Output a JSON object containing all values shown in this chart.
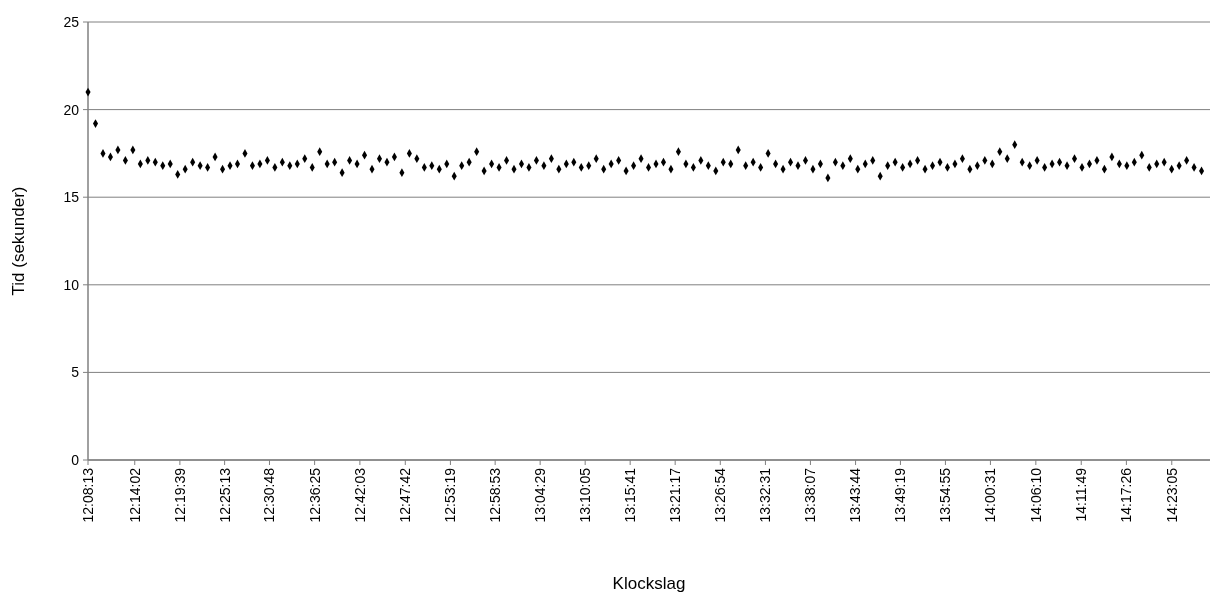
{
  "chart_data": {
    "type": "scatter",
    "xlabel": "Klockslag",
    "ylabel": "Tid (sekunder)",
    "marker": "diamond",
    "grid": "y",
    "xlim": [
      12.13694,
      14.464
    ],
    "xticks": [
      {
        "value": 12.13694,
        "label": "12:08:13"
      },
      {
        "value": 12.23389,
        "label": "12:14:02"
      },
      {
        "value": 12.3275,
        "label": "12:19:39"
      },
      {
        "value": 12.42028,
        "label": "12:25:13"
      },
      {
        "value": 12.51333,
        "label": "12:30:48"
      },
      {
        "value": 12.60694,
        "label": "12:36:25"
      },
      {
        "value": 12.70083,
        "label": "12:42:03"
      },
      {
        "value": 12.795,
        "label": "12:47:42"
      },
      {
        "value": 12.88861,
        "label": "12:53:19"
      },
      {
        "value": 12.98139,
        "label": "12:58:53"
      },
      {
        "value": 13.07472,
        "label": "13:04:29"
      },
      {
        "value": 13.16806,
        "label": "13:10:05"
      },
      {
        "value": 13.26139,
        "label": "13:15:41"
      },
      {
        "value": 13.35472,
        "label": "13:21:17"
      },
      {
        "value": 13.44833,
        "label": "13:26:54"
      },
      {
        "value": 13.54194,
        "label": "13:32:31"
      },
      {
        "value": 13.63528,
        "label": "13:38:07"
      },
      {
        "value": 13.72889,
        "label": "13:43:44"
      },
      {
        "value": 13.82194,
        "label": "13:49:19"
      },
      {
        "value": 13.91528,
        "label": "13:54:55"
      },
      {
        "value": 14.00861,
        "label": "14:00:31"
      },
      {
        "value": 14.10278,
        "label": "14:06:10"
      },
      {
        "value": 14.19694,
        "label": "14:11:49"
      },
      {
        "value": 14.29056,
        "label": "14:17:26"
      },
      {
        "value": 14.38472,
        "label": "14:23:05"
      }
    ],
    "ylim": [
      0,
      25
    ],
    "yticks": [
      0,
      5,
      10,
      15,
      20,
      25
    ],
    "x": [
      12.137,
      12.1525,
      12.168,
      12.1835,
      12.199,
      12.2145,
      12.23,
      12.2455,
      12.261,
      12.2765,
      12.292,
      12.3075,
      12.323,
      12.3385,
      12.354,
      12.3695,
      12.385,
      12.4005,
      12.416,
      12.4315,
      12.447,
      12.4625,
      12.478,
      12.4935,
      12.509,
      12.5245,
      12.54,
      12.5555,
      12.571,
      12.5865,
      12.602,
      12.6175,
      12.633,
      12.6485,
      12.664,
      12.6795,
      12.695,
      12.7105,
      12.726,
      12.7415,
      12.757,
      12.7725,
      12.788,
      12.8035,
      12.819,
      12.8345,
      12.85,
      12.8655,
      12.881,
      12.8965,
      12.912,
      12.9275,
      12.943,
      12.9585,
      12.974,
      12.9895,
      13.005,
      13.0205,
      13.036,
      13.0515,
      13.067,
      13.0825,
      13.098,
      13.1135,
      13.129,
      13.1445,
      13.16,
      13.1755,
      13.191,
      13.2065,
      13.222,
      13.2375,
      13.253,
      13.2685,
      13.284,
      13.2995,
      13.315,
      13.3305,
      13.346,
      13.3615,
      13.377,
      13.3925,
      13.408,
      13.4235,
      13.439,
      13.4545,
      13.47,
      13.4855,
      13.501,
      13.5165,
      13.532,
      13.5475,
      13.563,
      13.5785,
      13.594,
      13.6095,
      13.625,
      13.6405,
      13.656,
      13.6715,
      13.687,
      13.7025,
      13.718,
      13.7335,
      13.749,
      13.7645,
      13.78,
      13.7955,
      13.811,
      13.8265,
      13.842,
      13.8575,
      13.873,
      13.8885,
      13.904,
      13.9195,
      13.935,
      13.9505,
      13.966,
      13.9815,
      13.997,
      14.0125,
      14.028,
      14.0435,
      14.059,
      14.0745,
      14.09,
      14.1055,
      14.121,
      14.1365,
      14.152,
      14.1675,
      14.183,
      14.1985,
      14.214,
      14.2295,
      14.245,
      14.2605,
      14.276,
      14.2915,
      14.307,
      14.3225,
      14.338,
      14.3535,
      14.369,
      14.3845,
      14.4,
      14.4155,
      14.431,
      14.4465
    ],
    "series": [
      {
        "color": "#000000",
        "values": [
          21.0,
          19.2,
          17.5,
          17.3,
          17.7,
          17.1,
          17.7,
          16.9,
          17.1,
          17.0,
          16.8,
          16.9,
          16.3,
          16.6,
          17.0,
          16.8,
          16.7,
          17.3,
          16.6,
          16.8,
          16.9,
          17.5,
          16.8,
          16.9,
          17.1,
          16.7,
          17.0,
          16.8,
          16.9,
          17.2,
          16.7,
          17.6,
          16.9,
          17.0,
          16.4,
          17.1,
          16.9,
          17.4,
          16.6,
          17.2,
          17.0,
          17.3,
          16.4,
          17.5,
          17.2,
          16.7,
          16.8,
          16.6,
          16.9,
          16.2,
          16.8,
          17.0,
          17.6,
          16.5,
          16.9,
          16.7,
          17.1,
          16.6,
          16.9,
          16.7,
          17.1,
          16.8,
          17.2,
          16.6,
          16.9,
          17.0,
          16.7,
          16.8,
          17.2,
          16.6,
          16.9,
          17.1,
          16.5,
          16.8,
          17.2,
          16.7,
          16.9,
          17.0,
          16.6,
          17.6,
          16.9,
          16.7,
          17.1,
          16.8,
          16.5,
          17.0,
          16.9,
          17.7,
          16.8,
          17.0,
          16.7,
          17.5,
          16.9,
          16.6,
          17.0,
          16.8,
          17.1,
          16.6,
          16.9,
          16.1,
          17.0,
          16.8,
          17.2,
          16.6,
          16.9,
          17.1,
          16.2,
          16.8,
          17.0,
          16.7,
          16.9,
          17.1,
          16.6,
          16.8,
          17.0,
          16.7,
          16.9,
          17.2,
          16.6,
          16.8,
          17.1,
          16.9,
          17.6,
          17.2,
          18.0,
          17.0,
          16.8,
          17.1,
          16.7,
          16.9,
          17.0,
          16.8,
          17.2,
          16.7,
          16.9,
          17.1,
          16.6,
          17.3,
          16.9,
          16.8,
          17.0,
          17.4,
          16.7,
          16.9,
          17.0,
          16.6,
          16.8,
          17.1,
          16.7,
          16.5
        ]
      }
    ]
  }
}
